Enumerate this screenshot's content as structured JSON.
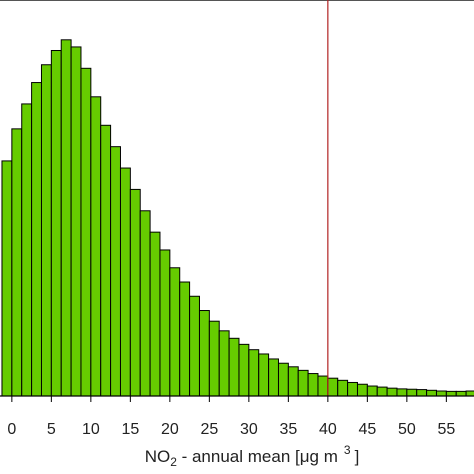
{
  "chart_data": {
    "type": "bar",
    "bin_width": 1.25,
    "x_start": -1.25,
    "values": [
      0.66,
      0.75,
      0.82,
      0.88,
      0.93,
      0.97,
      1.0,
      0.98,
      0.92,
      0.84,
      0.76,
      0.7,
      0.64,
      0.58,
      0.52,
      0.46,
      0.41,
      0.36,
      0.32,
      0.28,
      0.24,
      0.21,
      0.183,
      0.162,
      0.145,
      0.13,
      0.118,
      0.104,
      0.092,
      0.082,
      0.072,
      0.063,
      0.056,
      0.05,
      0.044,
      0.038,
      0.033,
      0.028,
      0.025,
      0.022,
      0.02,
      0.019,
      0.018,
      0.016,
      0.014,
      0.013,
      0.013,
      0.014,
      0.011,
      0.003,
      0.002
    ],
    "xlim": [
      -1.5,
      58.5
    ],
    "ylim": [
      0,
      1.05
    ],
    "xticks": [
      0,
      5,
      10,
      15,
      20,
      25,
      30,
      35,
      40,
      45,
      50,
      55
    ],
    "reference_line_x": 40,
    "xlabel": {
      "main": "NO",
      "sub": "2",
      "rest": " - annual mean [",
      "mu": "μ",
      "units": "g m",
      "sup": "3",
      "close": "]"
    },
    "ylabel": "",
    "grid": false,
    "colors": {
      "bar_fill": "#66cc00",
      "bar_stroke": "#000000",
      "reference_line": "#b22222"
    }
  }
}
